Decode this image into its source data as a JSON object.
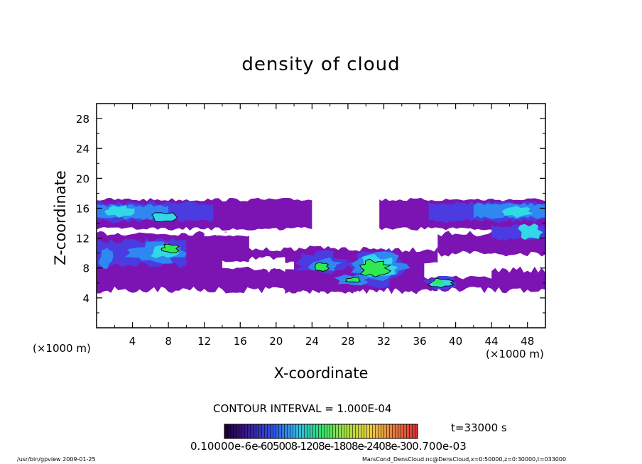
{
  "chart_data": {
    "type": "heatmap",
    "title": "density of cloud",
    "xlabel": "X-coordinate",
    "ylabel": "Z-coordinate",
    "x_unit": "(×1000 m)",
    "y_unit": "(×1000 m)",
    "xlim": [
      0,
      50
    ],
    "ylim": [
      0,
      30
    ],
    "x_ticks": [
      "4",
      "8",
      "12",
      "16",
      "20",
      "24",
      "28",
      "32",
      "36",
      "40",
      "44",
      "48"
    ],
    "y_ticks": [
      "4",
      "8",
      "12",
      "16",
      "20",
      "24",
      "28"
    ],
    "contour_interval": "CONTOUR INTERVAL = 1.000E-04",
    "time_label": "t=33000 s",
    "colorbar_label": "0.10000e-6 ... 0.700e-03",
    "colorbar_labels_text": "0.10000e-6",
    "colorbar_end_label": "0.700e-03",
    "colors": {
      "low": "#7c14b4",
      "mid1": "#4a3ce0",
      "mid2": "#2f88f0",
      "mid3": "#32d8e8",
      "high": "#30e850"
    },
    "cloud_regions": [
      {
        "name": "upper-left band",
        "x": [
          0,
          24
        ],
        "z": [
          13,
          17.5
        ],
        "level": "mid"
      },
      {
        "name": "upper-right band",
        "x": [
          31,
          50
        ],
        "z": [
          13,
          17.5
        ],
        "level": "mid"
      },
      {
        "name": "middle-left band",
        "x": [
          0,
          16
        ],
        "z": [
          6.5,
          12.5
        ],
        "level": "mid-high"
      },
      {
        "name": "lower band",
        "x": [
          0,
          50
        ],
        "z": [
          4.5,
          8.5
        ],
        "level": "low"
      },
      {
        "name": "central cell",
        "x": [
          22,
          36
        ],
        "z": [
          4.5,
          11
        ],
        "level": "high"
      },
      {
        "name": "right cell",
        "x": [
          36,
          41
        ],
        "z": [
          5,
          7
        ],
        "level": "high"
      }
    ]
  },
  "footer": {
    "left": "/usr/bin/gpview   2009-01-25",
    "right": "MarsCond_DensCloud.nc@DensCloud,x=0:50000,z=0:30000,t=033000"
  }
}
